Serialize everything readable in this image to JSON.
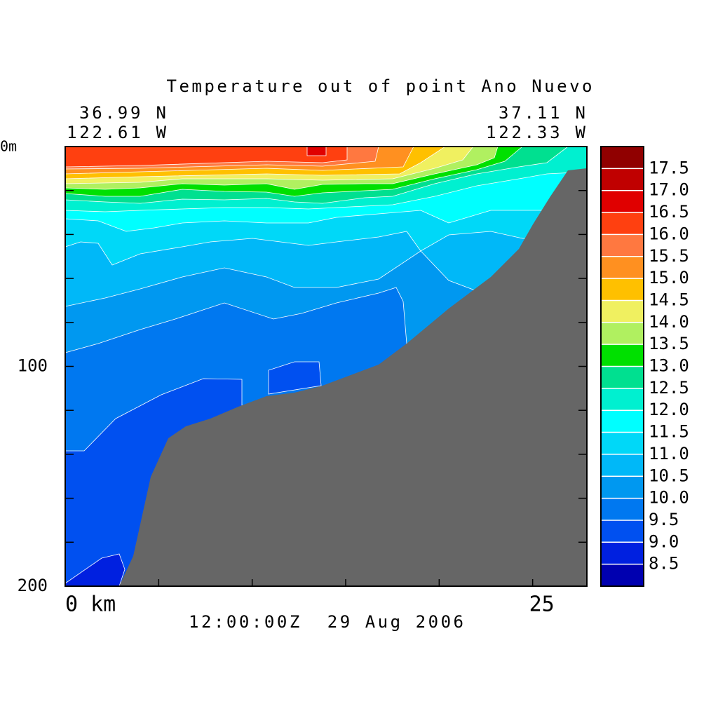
{
  "chart_data": {
    "type": "contour",
    "title": "Temperature out of point Ano Nuevo",
    "left_lat": "36.99 N",
    "left_lon": "122.61 W",
    "right_lat": "37.11 N",
    "right_lon": "122.33 W",
    "date": "12:00:00Z  29 Aug 2006",
    "xlim": [
      0,
      27.9
    ],
    "xticks": [
      {
        "value": 0,
        "label": "0 km"
      },
      {
        "value": 5,
        "label": null
      },
      {
        "value": 10,
        "label": null
      },
      {
        "value": 15,
        "label": null
      },
      {
        "value": 20,
        "label": null
      },
      25
    ],
    "ylim": [
      0,
      200
    ],
    "yticks": [
      {
        "value": 0,
        "label": "0m"
      },
      {
        "value": 20,
        "label": null
      },
      {
        "value": 40,
        "label": null
      },
      {
        "value": 60,
        "label": null
      },
      {
        "value": 80,
        "label": null
      },
      100,
      {
        "value": 120,
        "label": null
      },
      {
        "value": 140,
        "label": null
      },
      {
        "value": 160,
        "label": null
      },
      {
        "value": 180,
        "label": null
      },
      200
    ],
    "colorbar": {
      "levels": [
        {
          "value": 8,
          "label": null
        },
        {
          "value": 8.5,
          "label": "8.5"
        },
        {
          "value": 9,
          "label": "9.0"
        },
        {
          "value": 9.5,
          "label": "9.5"
        },
        {
          "value": 10,
          "label": "10.0"
        },
        {
          "value": 10.5,
          "label": "10.5"
        },
        {
          "value": 11,
          "label": "11.0"
        },
        {
          "value": 11.5,
          "label": "11.5"
        },
        {
          "value": 12,
          "label": "12.0"
        },
        {
          "value": 12.5,
          "label": "12.5"
        },
        {
          "value": 13,
          "label": "13.0"
        },
        {
          "value": 13.5,
          "label": "13.5"
        },
        {
          "value": 14,
          "label": "14.0"
        },
        {
          "value": 14.5,
          "label": "14.5"
        },
        {
          "value": 15,
          "label": "15.0"
        },
        {
          "value": 15.5,
          "label": "15.5"
        },
        {
          "value": 16,
          "label": "16.0"
        },
        {
          "value": 16.5,
          "label": "16.5"
        },
        {
          "value": 17,
          "label": "17.0"
        },
        {
          "value": 17.5,
          "label": "17.5"
        },
        {
          "value": 18,
          "label": null
        }
      ],
      "colors": [
        "#0000b0",
        "#0020e0",
        "#0050f0",
        "#0078f0",
        "#0098f0",
        "#00b8f8",
        "#00d8f8",
        "#00ffff",
        "#00f0d0",
        "#00e090",
        "#00e000",
        "#b0f060",
        "#f0f060",
        "#ffc000",
        "#ff9020",
        "#ff7840",
        "#ff4010",
        "#e00000",
        "#c00000",
        "#900000"
      ]
    }
  }
}
